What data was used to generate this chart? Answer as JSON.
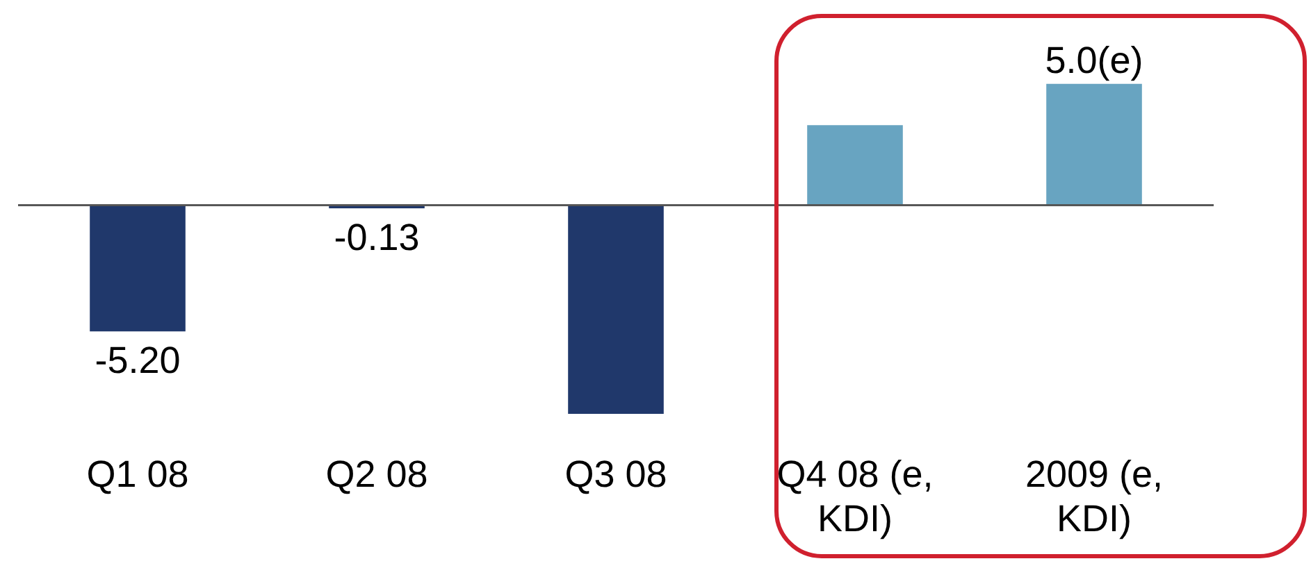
{
  "chart_data": {
    "type": "bar",
    "categories": [
      "Q1 08",
      "Q2 08",
      "Q3 08",
      "Q4 08 (e, KDI)",
      "2009 (e, KDI)"
    ],
    "values": [
      -5.2,
      -0.13,
      -8.6,
      3.3,
      5.0
    ],
    "value_labels": [
      "-5.20",
      "-0.13",
      null,
      null,
      "5.0(e)"
    ],
    "colors": [
      "#20386b",
      "#20386b",
      "#20386b",
      "#68a4c1",
      "#68a4c1"
    ]
  }
}
